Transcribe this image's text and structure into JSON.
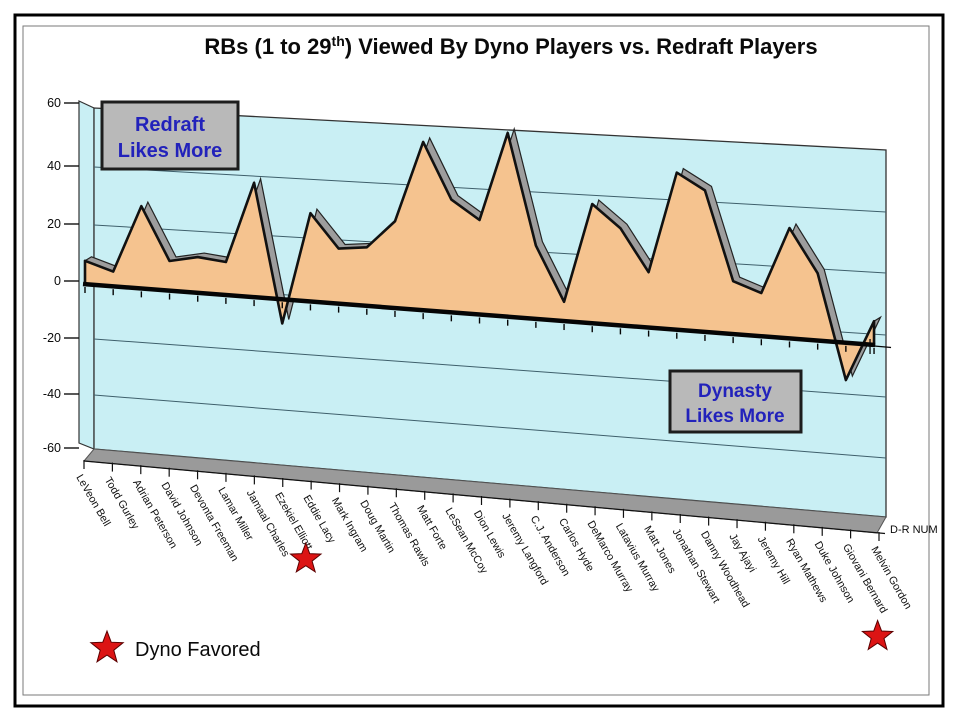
{
  "title": {
    "part1": "RBs (1 to 29",
    "sup": "th",
    "part2": ")  Viewed By Dyno Players vs. Redraft Players"
  },
  "chart_data": {
    "type": "area",
    "title": "RBs (1 to 29th) Viewed By Dyno Players vs. Redraft Players",
    "series_name": "D-R NUM",
    "categories": [
      "LeVeon Bell",
      "Todd Gurley",
      "Adrian Peterson",
      "David Johnson",
      "Devonta Freeman",
      "Lamar Miller",
      "Jamaal Charles",
      "Ezekiel Elliott",
      "Eddie Lacy",
      "Mark Ingram",
      "Doug Martin",
      "Thomas Rawls",
      "Matt Forte",
      "LeSean McCoy",
      "Dion Lewis",
      "Jeremy Langford",
      "C.J. Anderson",
      "Carlos Hyde",
      "DeMarco Murray",
      "Latavius Murray",
      "Matt Jones",
      "Jonathan Stewart",
      "Danny Woodhead",
      "Jay Ajayi",
      "Jeremy Hill",
      "Ryan Mathews",
      "Duke Johnson",
      "Giovani Bernard",
      "Melvin Gordon"
    ],
    "values": [
      8,
      5,
      28,
      10,
      12,
      11,
      38,
      -8,
      29,
      18,
      19,
      28,
      54,
      36,
      30,
      58,
      23,
      6,
      37,
      30,
      17,
      48,
      43,
      16,
      13,
      33,
      20,
      -11,
      7
    ],
    "ylim": [
      -60,
      60
    ],
    "yticks": [
      60,
      40,
      20,
      0,
      -20,
      -40,
      -60
    ],
    "grid": true,
    "style3d": true,
    "annotations": [
      {
        "id": "redraft",
        "line1": "Redraft",
        "line2": "Likes More"
      },
      {
        "id": "dynasty",
        "line1": "Dynasty",
        "line2": "Likes More"
      }
    ],
    "starred_players": [
      "Ezekiel Elliott",
      "Giovani Bernard"
    ],
    "colors": {
      "area_fill": "#F5C38F",
      "area_outline": "#111111",
      "wall_fill": "#C9EFF4",
      "floor_fill": "#9A9A9A",
      "ribbon_gray": "#9D9D9D",
      "box_fill": "#B9B9B9",
      "box_text_blue": "#2222BB",
      "star_red": "#DC1414"
    }
  },
  "axis_note": "D-R NUM",
  "legend": {
    "label": "Dyno Favored"
  }
}
